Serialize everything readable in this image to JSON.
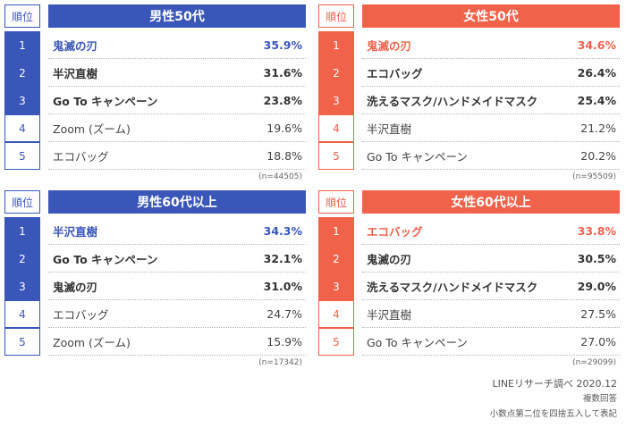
{
  "colors": {
    "male": "#3a56b8",
    "female": "#f0624a"
  },
  "rank_header": "順位",
  "panels": {
    "m50": {
      "title": "男性50代",
      "rows": [
        {
          "rank": "1",
          "item": "鬼滅の刃",
          "pct": "35.9%"
        },
        {
          "rank": "2",
          "item": "半沢直樹",
          "pct": "31.6%"
        },
        {
          "rank": "3",
          "item": "Go To キャンペーン",
          "pct": "23.8%"
        },
        {
          "rank": "4",
          "item": "Zoom (ズーム)",
          "pct": "19.6%"
        },
        {
          "rank": "5",
          "item": "エコバッグ",
          "pct": "18.8%"
        }
      ],
      "n": "(n=44505)"
    },
    "f50": {
      "title": "女性50代",
      "rows": [
        {
          "rank": "1",
          "item": "鬼滅の刃",
          "pct": "34.6%"
        },
        {
          "rank": "2",
          "item": "エコバッグ",
          "pct": "26.4%"
        },
        {
          "rank": "3",
          "item": "洗えるマスク/ハンドメイドマスク",
          "pct": "25.4%"
        },
        {
          "rank": "4",
          "item": "半沢直樹",
          "pct": "21.2%"
        },
        {
          "rank": "5",
          "item": "Go To キャンペーン",
          "pct": "20.2%"
        }
      ],
      "n": "(n=95509)"
    },
    "m60": {
      "title": "男性60代以上",
      "rows": [
        {
          "rank": "1",
          "item": "半沢直樹",
          "pct": "34.3%"
        },
        {
          "rank": "2",
          "item": "Go To キャンペーン",
          "pct": "32.1%"
        },
        {
          "rank": "3",
          "item": "鬼滅の刃",
          "pct": "31.0%"
        },
        {
          "rank": "4",
          "item": "エコバッグ",
          "pct": "24.7%"
        },
        {
          "rank": "5",
          "item": "Zoom (ズーム)",
          "pct": "15.9%"
        }
      ],
      "n": "(n=17342)"
    },
    "f60": {
      "title": "女性60代以上",
      "rows": [
        {
          "rank": "1",
          "item": "エコバッグ",
          "pct": "33.8%"
        },
        {
          "rank": "2",
          "item": "鬼滅の刃",
          "pct": "30.5%"
        },
        {
          "rank": "3",
          "item": "洗えるマスク/ハンドメイドマスク",
          "pct": "29.0%"
        },
        {
          "rank": "4",
          "item": "半沢直樹",
          "pct": "27.5%"
        },
        {
          "rank": "5",
          "item": "Go To キャンペーン",
          "pct": "27.0%"
        }
      ],
      "n": "(n=29099)"
    }
  },
  "footer": {
    "source": "LINEリサーチ調べ 2020.12",
    "note1": "複数回答",
    "note2": "小数点第二位を四捨五入して表記"
  }
}
